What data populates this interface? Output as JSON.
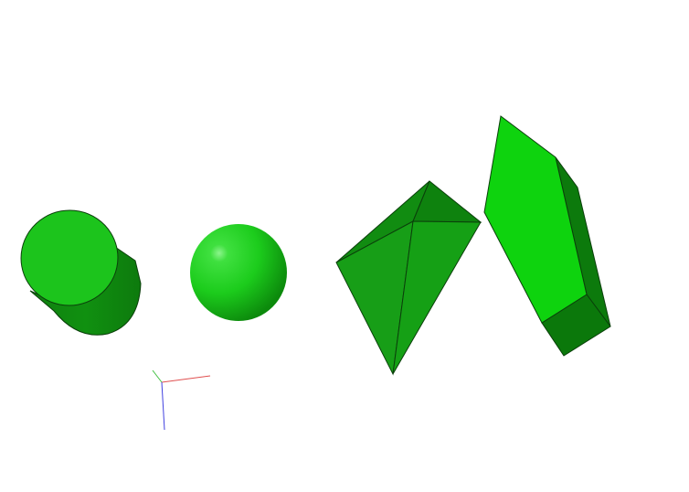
{
  "scene": {
    "background": "#ffffff",
    "objects": [
      {
        "kind": "cylinder",
        "icon": "cylinder-icon",
        "color": "#1cab1c"
      },
      {
        "kind": "sphere",
        "icon": "sphere-icon",
        "color": "#1cd01c"
      },
      {
        "kind": "pyramid",
        "icon": "pyramid-icon",
        "color": "#169e16"
      },
      {
        "kind": "prism",
        "icon": "prism-icon",
        "color": "#0ed10e"
      }
    ],
    "axes_triad": {
      "icon": "axes-triad-icon",
      "x_color": "#e05050",
      "y_color": "#40c040",
      "z_color": "#4040e0"
    }
  }
}
